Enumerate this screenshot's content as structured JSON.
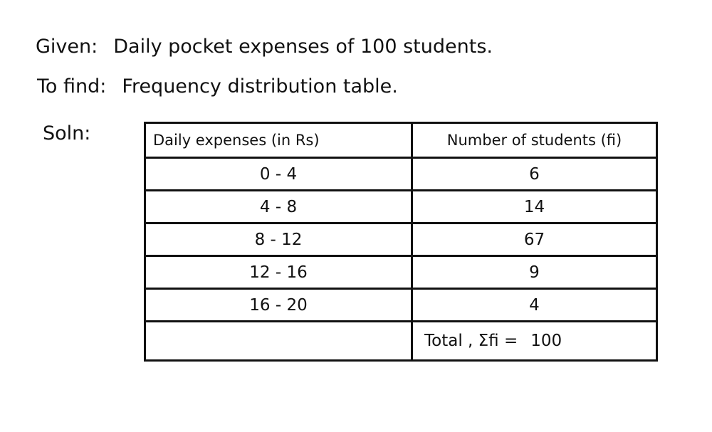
{
  "given": {
    "label": "Given:",
    "text": "Daily pocket expenses of 100 students."
  },
  "to_find": {
    "label": "To find:",
    "text": "Frequency distribution table."
  },
  "solution": {
    "label": "Soln:",
    "table": {
      "header": [
        "Daily expenses (in Rs)",
        "Number of students (fi)"
      ],
      "rows": [
        [
          "0 - 4",
          6
        ],
        [
          "4 - 8",
          14
        ],
        [
          "8 - 12",
          67
        ],
        [
          "12 - 16",
          9
        ],
        [
          "16 - 20",
          4
        ]
      ],
      "total": {
        "label": "Total , Σfi =",
        "value": 100
      }
    }
  }
}
